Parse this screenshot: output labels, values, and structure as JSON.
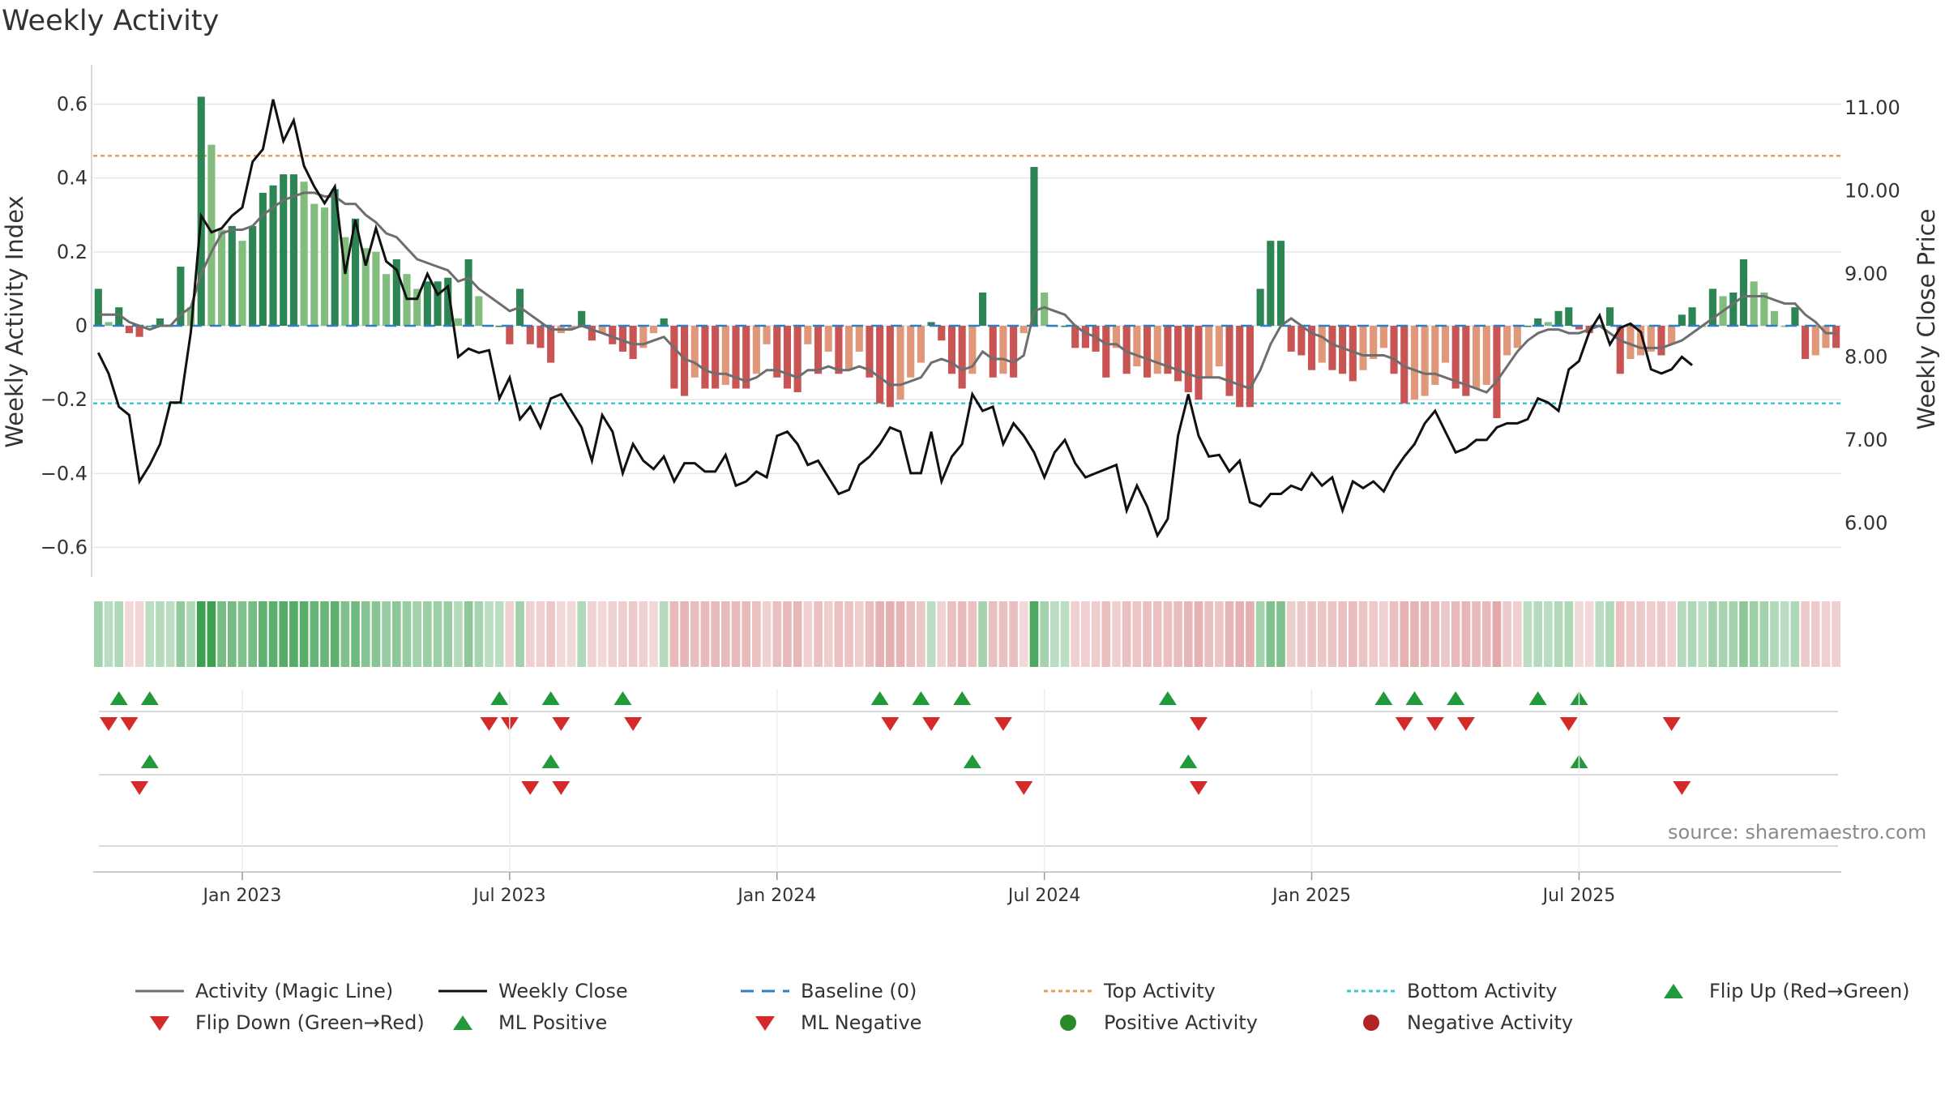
{
  "chart_data": {
    "type": "bar+line",
    "title": "Weekly Activity",
    "source_note": "source: sharemaestro.com",
    "y_left": {
      "label": "Weekly Activity Index",
      "range": [
        -0.68,
        0.68
      ],
      "ticks": [
        0.6,
        0.4,
        0.2,
        0,
        -0.2,
        -0.4,
        -0.6
      ],
      "tick_labels": [
        "0.6",
        "0.4",
        "0.2",
        "0",
        "−0.2",
        "−0.4",
        "−0.6"
      ]
    },
    "y_right": {
      "label": "Weekly Close Price",
      "range": [
        5.35,
        11.4
      ],
      "ticks": [
        11,
        10,
        9,
        8,
        7,
        6
      ],
      "tick_labels": [
        "11.00",
        "10.00",
        "9.00",
        "8.00",
        "7.00",
        "6.00"
      ]
    },
    "x": {
      "start_week_index": 0,
      "week_count": 156,
      "tick_labels": [
        "Jan 2023",
        "Jul 2023",
        "Jan 2024",
        "Jul 2024",
        "Jan 2025",
        "Jul 2025"
      ],
      "tick_week_index": [
        14,
        40,
        66,
        92,
        118,
        144
      ]
    },
    "reference_lines": {
      "baseline": 0,
      "top_activity": 0.46,
      "bottom_activity": -0.21
    },
    "activity_index": [
      0.1,
      0.01,
      0.05,
      -0.02,
      -0.03,
      0.0,
      0.02,
      0.0,
      0.16,
      0.05,
      0.62,
      0.49,
      0.26,
      0.27,
      0.23,
      0.27,
      0.36,
      0.38,
      0.41,
      0.41,
      0.39,
      0.33,
      0.32,
      0.37,
      0.24,
      0.29,
      0.21,
      0.2,
      0.14,
      0.18,
      0.14,
      0.1,
      0.12,
      0.12,
      0.13,
      0.02,
      0.18,
      0.08,
      0.0,
      0.0,
      -0.05,
      0.1,
      -0.05,
      -0.06,
      -0.1,
      -0.02,
      -0.01,
      0.04,
      -0.04,
      -0.02,
      -0.05,
      -0.07,
      -0.09,
      -0.06,
      -0.02,
      0.02,
      -0.17,
      -0.19,
      -0.14,
      -0.17,
      -0.17,
      -0.16,
      -0.17,
      -0.17,
      -0.13,
      -0.05,
      -0.14,
      -0.17,
      -0.18,
      -0.05,
      -0.13,
      -0.07,
      -0.13,
      -0.12,
      -0.07,
      -0.14,
      -0.21,
      -0.22,
      -0.2,
      -0.14,
      -0.1,
      0.01,
      -0.04,
      -0.13,
      -0.17,
      -0.13,
      0.09,
      -0.14,
      -0.13,
      -0.14,
      -0.02,
      0.43,
      0.09,
      0.0,
      0.0,
      -0.06,
      -0.06,
      -0.07,
      -0.14,
      -0.06,
      -0.13,
      -0.11,
      -0.14,
      -0.13,
      -0.13,
      -0.15,
      -0.18,
      -0.2,
      -0.14,
      -0.11,
      -0.19,
      -0.22,
      -0.22,
      0.1,
      0.23,
      0.23,
      -0.07,
      -0.08,
      -0.12,
      -0.1,
      -0.12,
      -0.13,
      -0.15,
      -0.12,
      -0.09,
      -0.06,
      -0.13,
      -0.21,
      -0.2,
      -0.19,
      -0.16,
      -0.1,
      -0.17,
      -0.19,
      -0.17,
      -0.16,
      -0.25,
      -0.08,
      -0.06,
      0.0,
      0.02,
      0.01,
      0.04,
      0.05,
      -0.01,
      -0.02,
      0.0,
      0.05,
      -0.13,
      -0.09,
      -0.08,
      -0.07,
      -0.08,
      -0.05,
      0.03,
      0.05,
      0.0,
      0.1,
      0.08,
      0.09,
      0.18,
      0.12,
      0.09,
      0.04,
      0.0,
      0.05,
      -0.09,
      -0.08,
      -0.06,
      -0.06
    ],
    "magic_line": [
      0.03,
      0.03,
      0.03,
      0.01,
      0.0,
      -0.01,
      0.0,
      0.0,
      0.03,
      0.05,
      0.14,
      0.2,
      0.25,
      0.26,
      0.26,
      0.27,
      0.3,
      0.32,
      0.34,
      0.35,
      0.36,
      0.36,
      0.35,
      0.35,
      0.33,
      0.33,
      0.3,
      0.28,
      0.25,
      0.24,
      0.21,
      0.18,
      0.17,
      0.16,
      0.15,
      0.12,
      0.13,
      0.1,
      0.08,
      0.06,
      0.04,
      0.05,
      0.03,
      0.01,
      -0.01,
      -0.01,
      -0.01,
      0.0,
      -0.01,
      -0.02,
      -0.03,
      -0.04,
      -0.05,
      -0.05,
      -0.04,
      -0.03,
      -0.06,
      -0.09,
      -0.1,
      -0.12,
      -0.13,
      -0.13,
      -0.14,
      -0.15,
      -0.14,
      -0.12,
      -0.12,
      -0.13,
      -0.14,
      -0.12,
      -0.12,
      -0.11,
      -0.12,
      -0.12,
      -0.11,
      -0.12,
      -0.14,
      -0.16,
      -0.16,
      -0.15,
      -0.14,
      -0.1,
      -0.09,
      -0.1,
      -0.12,
      -0.11,
      -0.07,
      -0.09,
      -0.09,
      -0.1,
      -0.08,
      0.04,
      0.05,
      0.04,
      0.03,
      0.0,
      -0.02,
      -0.03,
      -0.05,
      -0.05,
      -0.07,
      -0.08,
      -0.09,
      -0.1,
      -0.11,
      -0.12,
      -0.13,
      -0.14,
      -0.14,
      -0.14,
      -0.15,
      -0.16,
      -0.17,
      -0.12,
      -0.05,
      0.0,
      0.02,
      0.0,
      -0.02,
      -0.03,
      -0.05,
      -0.06,
      -0.07,
      -0.08,
      -0.08,
      -0.08,
      -0.09,
      -0.11,
      -0.12,
      -0.13,
      -0.13,
      -0.14,
      -0.15,
      -0.16,
      -0.17,
      -0.18,
      -0.15,
      -0.11,
      -0.07,
      -0.04,
      -0.02,
      -0.01,
      -0.01,
      -0.02,
      -0.02,
      -0.01,
      0.0,
      -0.02,
      -0.04,
      -0.05,
      -0.06,
      -0.06,
      -0.06,
      -0.05,
      -0.04,
      -0.02,
      0.0,
      0.02,
      0.04,
      0.06,
      0.08,
      0.08,
      0.08,
      0.07,
      0.06,
      0.06,
      0.03,
      0.01,
      -0.02,
      -0.02
    ],
    "weekly_close": [
      8.05,
      7.8,
      7.4,
      7.3,
      6.5,
      6.7,
      6.95,
      7.45,
      7.45,
      8.3,
      9.7,
      9.5,
      9.55,
      9.7,
      9.8,
      10.35,
      10.5,
      11.1,
      10.6,
      10.85,
      10.3,
      10.05,
      9.85,
      10.05,
      9.0,
      9.65,
      9.1,
      9.55,
      9.15,
      9.05,
      8.7,
      8.7,
      9.0,
      8.75,
      8.85,
      8.0,
      8.1,
      8.05,
      8.08,
      7.5,
      7.75,
      7.25,
      7.4,
      7.15,
      7.5,
      7.55,
      7.35,
      7.15,
      6.75,
      7.3,
      7.1,
      6.6,
      6.95,
      6.75,
      6.65,
      6.8,
      6.5,
      6.72,
      6.72,
      6.62,
      6.62,
      6.82,
      6.45,
      6.5,
      6.62,
      6.55,
      7.05,
      7.1,
      6.95,
      6.7,
      6.75,
      6.55,
      6.35,
      6.4,
      6.7,
      6.8,
      6.95,
      7.15,
      7.1,
      6.6,
      6.6,
      7.1,
      6.5,
      6.8,
      6.95,
      7.55,
      7.35,
      7.4,
      6.95,
      7.2,
      7.05,
      6.85,
      6.55,
      6.85,
      7.0,
      6.72,
      6.55,
      6.6,
      6.65,
      6.7,
      6.15,
      6.45,
      6.2,
      5.85,
      6.05,
      7.05,
      7.55,
      7.05,
      6.8,
      6.82,
      6.62,
      6.75,
      6.25,
      6.2,
      6.35,
      6.35,
      6.45,
      6.4,
      6.6,
      6.45,
      6.55,
      6.15,
      6.5,
      6.42,
      6.5,
      6.38,
      6.62,
      6.8,
      6.95,
      7.2,
      7.35,
      7.1,
      6.85,
      6.9,
      7.0,
      7.0,
      7.15,
      7.2,
      7.2,
      7.25,
      7.5,
      7.45,
      7.35,
      7.85,
      7.95,
      8.3,
      8.5,
      8.15,
      8.35,
      8.4,
      8.3,
      7.85,
      7.8,
      7.85,
      8.0,
      7.9
    ],
    "heat_strip": [
      0.1,
      0.01,
      0.05,
      -0.02,
      -0.03,
      0.0,
      0.02,
      0.0,
      0.16,
      0.05,
      0.62,
      0.49,
      0.26,
      0.27,
      0.23,
      0.27,
      0.36,
      0.38,
      0.41,
      0.41,
      0.39,
      0.33,
      0.32,
      0.37,
      0.24,
      0.29,
      0.21,
      0.2,
      0.14,
      0.18,
      0.14,
      0.1,
      0.12,
      0.12,
      0.13,
      0.02,
      0.18,
      0.08,
      0.0,
      0.0,
      -0.05,
      0.1,
      -0.05,
      -0.06,
      -0.1,
      -0.02,
      -0.01,
      0.04,
      -0.04,
      -0.02,
      -0.05,
      -0.07,
      -0.09,
      -0.06,
      -0.02,
      0.02,
      -0.17,
      -0.19,
      -0.14,
      -0.17,
      -0.17,
      -0.16,
      -0.17,
      -0.17,
      -0.13,
      -0.05,
      -0.14,
      -0.17,
      -0.18,
      -0.05,
      -0.13,
      -0.07,
      -0.13,
      -0.12,
      -0.07,
      -0.14,
      -0.21,
      -0.22,
      -0.2,
      -0.14,
      -0.1,
      0.01,
      -0.04,
      -0.13,
      -0.17,
      -0.13,
      0.09,
      -0.14,
      -0.13,
      -0.14,
      -0.02,
      0.43,
      0.09,
      0.0,
      0.0,
      -0.06,
      -0.06,
      -0.07,
      -0.14,
      -0.06,
      -0.13,
      -0.11,
      -0.14,
      -0.13,
      -0.13,
      -0.15,
      -0.18,
      -0.2,
      -0.14,
      -0.11,
      -0.19,
      -0.22,
      -0.22,
      0.1,
      0.23,
      0.23,
      -0.07,
      -0.08,
      -0.12,
      -0.1,
      -0.12,
      -0.13,
      -0.15,
      -0.12,
      -0.09,
      -0.06,
      -0.13,
      -0.21,
      -0.2,
      -0.19,
      -0.16,
      -0.1,
      -0.17,
      -0.19,
      -0.17,
      -0.16,
      -0.25,
      -0.08,
      -0.06,
      0.0,
      0.02,
      0.01,
      0.04,
      0.05,
      -0.01,
      -0.02,
      0.0,
      0.05,
      -0.13,
      -0.09,
      -0.08,
      -0.07,
      -0.08,
      -0.05,
      0.03,
      0.05,
      0.0,
      0.1,
      0.08,
      0.09,
      0.18,
      0.12,
      0.09,
      0.04,
      0.0,
      0.05,
      -0.09,
      -0.08,
      -0.06,
      -0.06
    ],
    "flip_up_weeks": [
      2,
      5,
      39,
      44,
      51,
      76,
      80,
      84,
      104,
      125,
      128,
      132,
      140,
      144
    ],
    "flip_down_weeks": [
      1,
      3,
      38,
      40,
      45,
      52,
      77,
      81,
      88,
      107,
      127,
      130,
      133,
      143,
      153
    ],
    "ml_positive_weeks": [
      5,
      44,
      85,
      106,
      144
    ],
    "ml_negative_weeks": [
      4,
      42,
      45,
      90,
      107,
      154
    ],
    "legend": [
      {
        "label": "Activity (Magic Line)",
        "symbol": "line",
        "color": "#6e6e6e"
      },
      {
        "label": "Weekly Close",
        "symbol": "line",
        "color": "#111111"
      },
      {
        "label": "Baseline (0)",
        "symbol": "dash",
        "color": "#2f7fc1"
      },
      {
        "label": "Top Activity",
        "symbol": "dot-line",
        "color": "#e0a060"
      },
      {
        "label": "Bottom Activity",
        "symbol": "dot-line",
        "color": "#3fc7d0"
      },
      {
        "label": "Flip Up (Red→Green)",
        "symbol": "triangle-up",
        "color": "#22993a"
      },
      {
        "label": "Flip Down (Green→Red)",
        "symbol": "triangle-down",
        "color": "#d42a2a"
      },
      {
        "label": "ML Positive",
        "symbol": "triangle-up",
        "color": "#22993a"
      },
      {
        "label": "ML Negative",
        "symbol": "triangle-down",
        "color": "#d42a2a"
      },
      {
        "label": "Positive Activity",
        "symbol": "circle",
        "color": "#2a8a2a"
      },
      {
        "label": "Negative Activity",
        "symbol": "circle",
        "color": "#b02424"
      }
    ],
    "colors": {
      "pos_strong": "#2e8554",
      "pos_light": "#82bd7e",
      "neg_strong": "#c85454",
      "neg_light": "#e0977a",
      "grid": "#e6e6e6",
      "axis": "#cccccc"
    }
  }
}
